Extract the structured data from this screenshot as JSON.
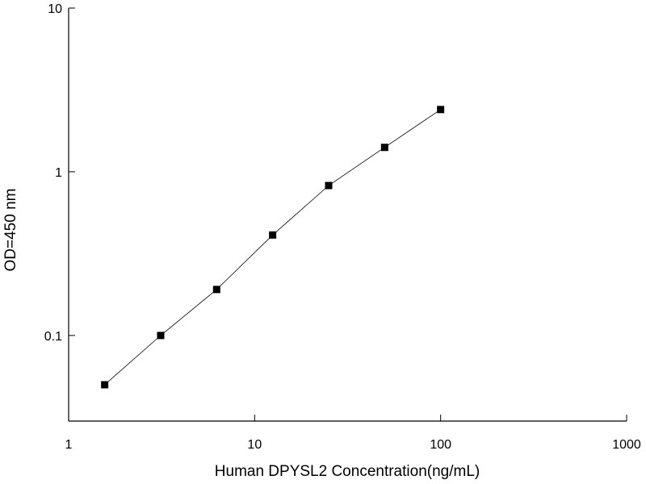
{
  "chart_data": {
    "type": "line",
    "x_label": "Human DPYSL2 Concentration(ng/mL)",
    "y_label": "OD=450 nm",
    "x": [
      1.5625,
      3.125,
      6.25,
      12.5,
      25,
      50,
      100
    ],
    "series": [
      {
        "name": "OD",
        "color": "#000000",
        "values": [
          0.05,
          0.1,
          0.191,
          0.411,
          0.824,
          1.409,
          2.4
        ]
      }
    ],
    "xlim": [
      1,
      1000
    ],
    "xticks": [
      1,
      10,
      100,
      1000
    ],
    "ylim": [
      0.03,
      10
    ],
    "yticks": [
      0.1,
      1,
      10
    ],
    "xscale": "log",
    "yscale": "log",
    "grid": false
  }
}
